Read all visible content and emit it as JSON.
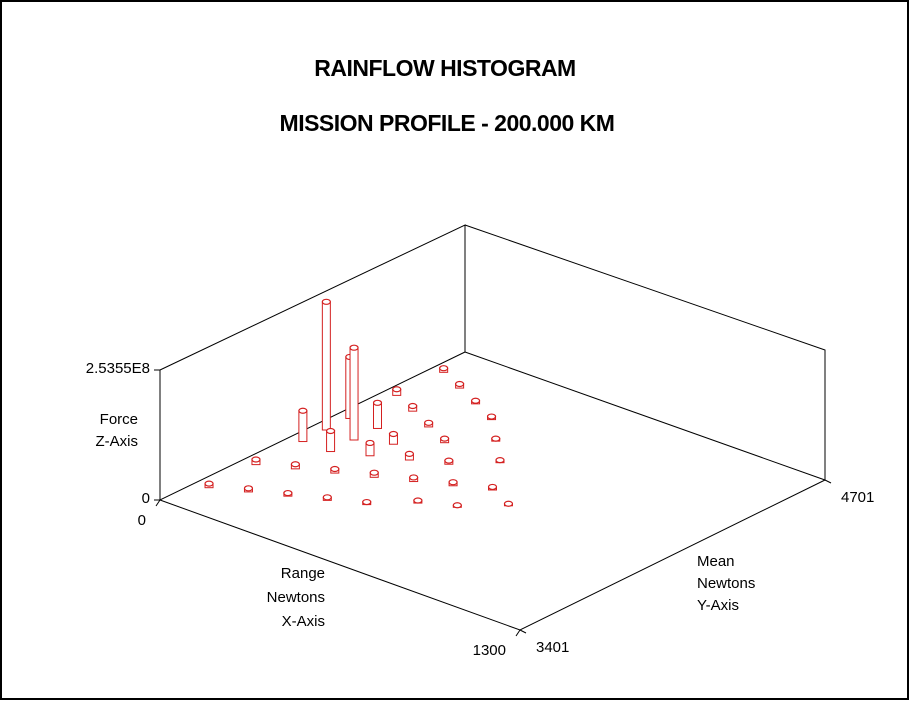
{
  "chart_data": {
    "type": "bar3d",
    "title": "RAINFLOW HISTOGRAM",
    "subtitle": "MISSION PROFILE -  200.000 KM",
    "x_label": [
      "Range",
      "Newtons",
      "X-Axis"
    ],
    "y_label": [
      "Mean",
      "Newtons",
      "Y-Axis"
    ],
    "z_label": [
      "Force",
      "Z-Axis"
    ],
    "color": "#d42020",
    "xlim": [
      0,
      1300
    ],
    "ylim": [
      3401,
      4701
    ],
    "zlim": [
      0,
      253550000
    ],
    "xticks": [
      0,
      1300
    ],
    "yticks": [
      3401,
      4701
    ],
    "zticks": [
      0,
      {
        "value": 253550000,
        "label": "2.5355E8"
      }
    ],
    "x": [
      50,
      150,
      50,
      150,
      250,
      50,
      150,
      250,
      350,
      50,
      150,
      250,
      350,
      450,
      50,
      150,
      250,
      350,
      450,
      550,
      650,
      50,
      150,
      250,
      350,
      450,
      550,
      650,
      750,
      50,
      150,
      250,
      350,
      450,
      550
    ],
    "y": [
      4551,
      4501,
      4351,
      4301,
      4451,
      4151,
      4151,
      4251,
      4401,
      4051,
      4051,
      4101,
      4201,
      4301,
      3951,
      3951,
      4001,
      4051,
      4101,
      4201,
      4051,
      3751,
      3801,
      3851,
      3901,
      3951,
      4001,
      3901,
      4001,
      3551,
      3601,
      3651,
      3701,
      3751,
      3851
    ],
    "z": [
      8000000,
      8000000,
      12000000,
      10000000,
      6000000,
      120000000,
      50000000,
      8000000,
      6000000,
      250000000,
      180000000,
      20000000,
      8000000,
      5000000,
      60000000,
      40000000,
      25000000,
      12000000,
      7000000,
      5000000,
      6000000,
      10000000,
      9000000,
      8000000,
      9000000,
      8000000,
      7000000,
      4000000,
      4000000,
      8000000,
      7000000,
      6000000,
      6000000,
      5000000,
      5000000
    ]
  }
}
